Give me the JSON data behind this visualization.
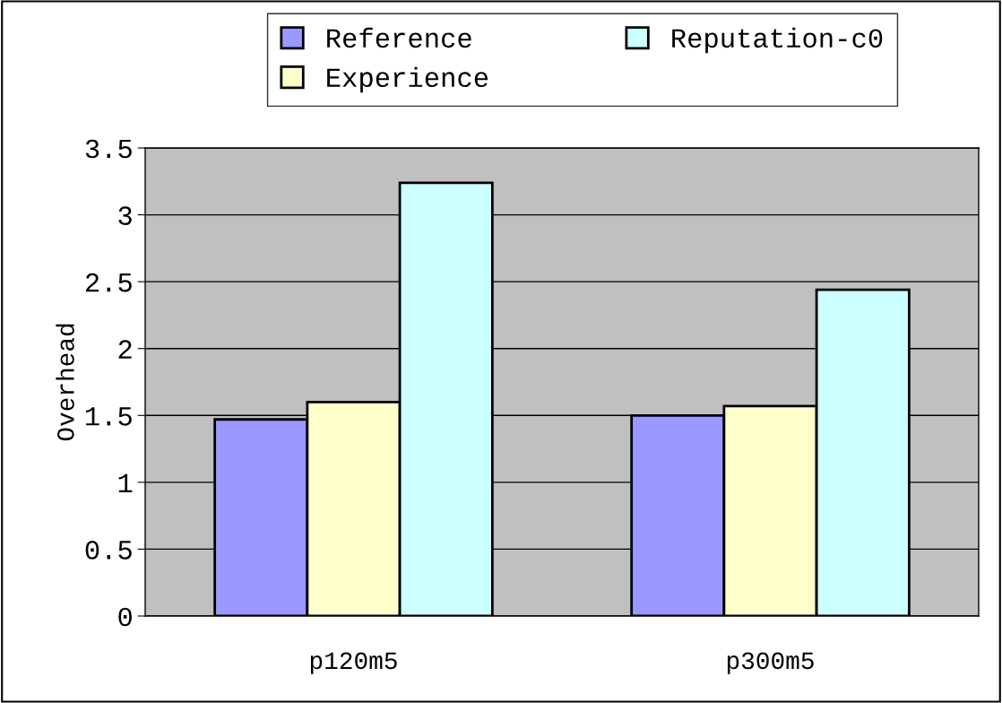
{
  "chart_data": {
    "type": "bar",
    "ylabel": "Overhead",
    "categories": [
      "p120m5",
      "p300m5"
    ],
    "series": [
      {
        "name": "Reference",
        "color": "#9999ff",
        "values": [
          1.47,
          1.5
        ]
      },
      {
        "name": "Experience",
        "color": "#ffffcc",
        "values": [
          1.6,
          1.57
        ]
      },
      {
        "name": "Reputation-c0",
        "color": "#ccffff",
        "values": [
          3.24,
          2.44
        ]
      }
    ],
    "ylim": [
      0,
      3.5
    ],
    "yticks": [
      0,
      0.5,
      1,
      1.5,
      2,
      2.5,
      3,
      3.5
    ],
    "grid": "y",
    "legend": "top"
  }
}
